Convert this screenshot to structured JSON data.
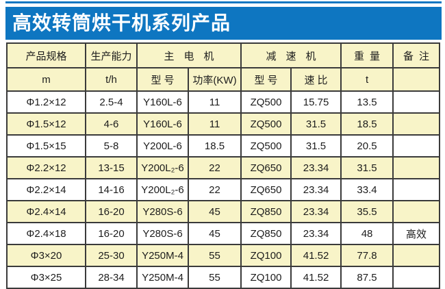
{
  "banner": {
    "title": "高效转筒烘干机系列产品"
  },
  "colors": {
    "banner_blue": "#0e76c1",
    "header_cream": "#f8f4c8",
    "row_stripe_cream": "#f8f4c8",
    "border_dark": "#3a3a3a",
    "title_text": "#ffffff",
    "body_text": "#1c1c1c"
  },
  "table": {
    "header_groups": [
      {
        "label": "产品规格"
      },
      {
        "label": "生产能力"
      },
      {
        "label": "主电机"
      },
      {
        "label": "减速机"
      },
      {
        "label": "重量"
      },
      {
        "label": "备注"
      }
    ],
    "subheaders": [
      "m",
      "t/h",
      "型号",
      "功率(KW)",
      "型号",
      "速比",
      "t",
      ""
    ],
    "rows": [
      [
        "Φ1.2×12",
        "2.5-4",
        "Y160L-6",
        "11",
        "ZQ500",
        "15.75",
        "13.5",
        ""
      ],
      [
        "Φ1.5×12",
        "4-6",
        "Y160L-6",
        "11",
        "ZQ500",
        "31.5",
        "18.5",
        ""
      ],
      [
        "Φ1.5×15",
        "5-8",
        "Y200L-6",
        "18.5",
        "ZQ500",
        "31.5",
        "20.5",
        ""
      ],
      [
        "Φ2.2×12",
        "13-15",
        "Y200L₂-6",
        "22",
        "ZQ650",
        "23.34",
        "31.5",
        ""
      ],
      [
        "Φ2.2×14",
        "14-16",
        "Y200L₂-6",
        "22",
        "ZQ650",
        "23.34",
        "33.4",
        ""
      ],
      [
        "Φ2.4×14",
        "16-20",
        "Y280S-6",
        "45",
        "ZQ850",
        "23.34",
        "35.5",
        ""
      ],
      [
        "Φ2.4×18",
        "16-20",
        "Y280S-6",
        "45",
        "ZQ850",
        "23.34",
        "48",
        "高效"
      ],
      [
        "Φ3×20",
        "25-30",
        "Y250M-4",
        "55",
        "ZQ100",
        "41.52",
        "77.8",
        ""
      ],
      [
        "Φ3×25",
        "28-34",
        "Y250M-4",
        "55",
        "ZQ100",
        "41.52",
        "87.5",
        ""
      ]
    ]
  }
}
